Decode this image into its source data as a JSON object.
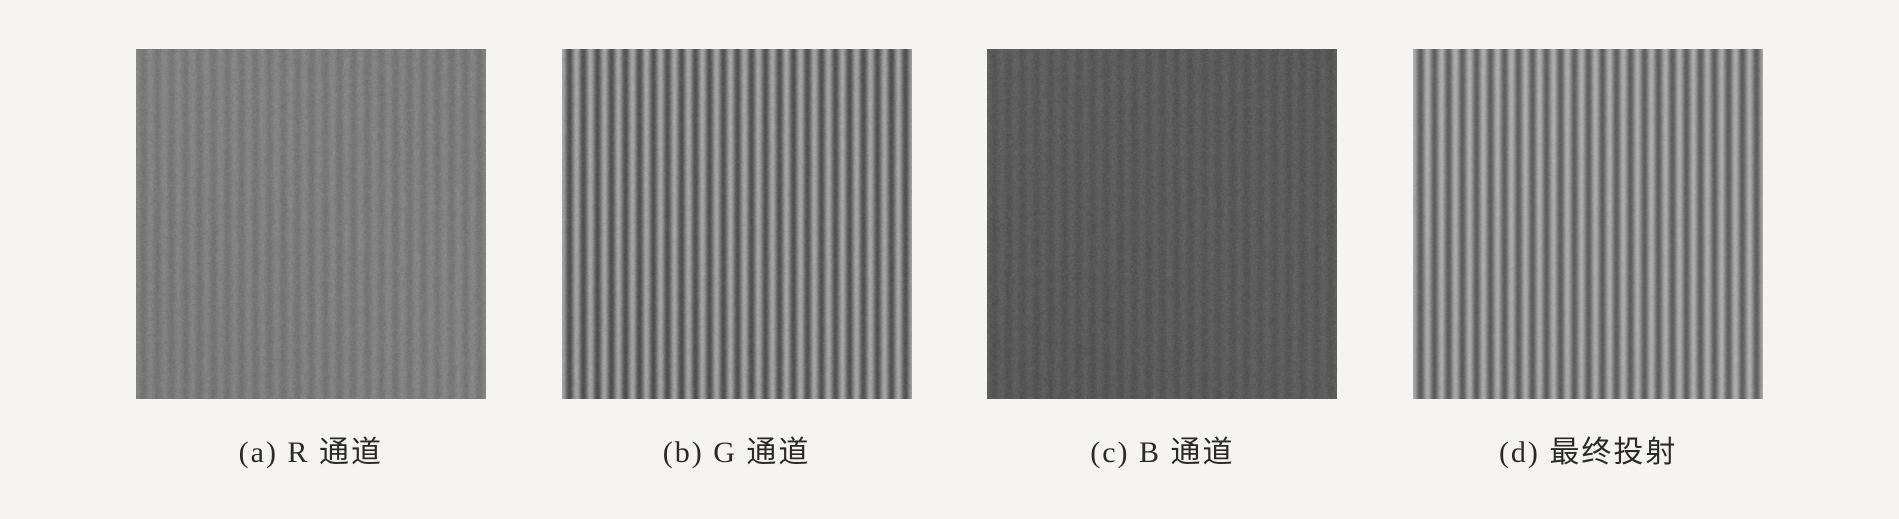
{
  "figure": {
    "background_color": "#f5f4f1",
    "panels": [
      {
        "id": "panel-r",
        "caption": "(a) R 通道",
        "stripes": {
          "num_stripes": 25,
          "base_dark": "#5a5a5a",
          "base_light": "#a0a0a0",
          "contrast": 0.35,
          "noise_level": 0.22,
          "haze": 0.35,
          "overall_tone": "medium"
        }
      },
      {
        "id": "panel-g",
        "caption": "(b)  G 通道",
        "stripes": {
          "num_stripes": 25,
          "base_dark": "#3d3d3d",
          "base_light": "#b8b8b8",
          "contrast": 0.75,
          "noise_level": 0.12,
          "haze": 0.1,
          "overall_tone": "high-contrast"
        }
      },
      {
        "id": "panel-b",
        "caption": "(c)  B 通道",
        "stripes": {
          "num_stripes": 25,
          "base_dark": "#3a3a3a",
          "base_light": "#7a7a7a",
          "contrast": 0.28,
          "noise_level": 0.25,
          "haze": 0.4,
          "overall_tone": "dark"
        }
      },
      {
        "id": "panel-final",
        "caption": "(d) 最终投射",
        "stripes": {
          "num_stripes": 25,
          "base_dark": "#4a4a4a",
          "base_light": "#c0c0c0",
          "contrast": 0.7,
          "noise_level": 0.1,
          "haze": 0.05,
          "overall_tone": "clear"
        }
      }
    ]
  }
}
